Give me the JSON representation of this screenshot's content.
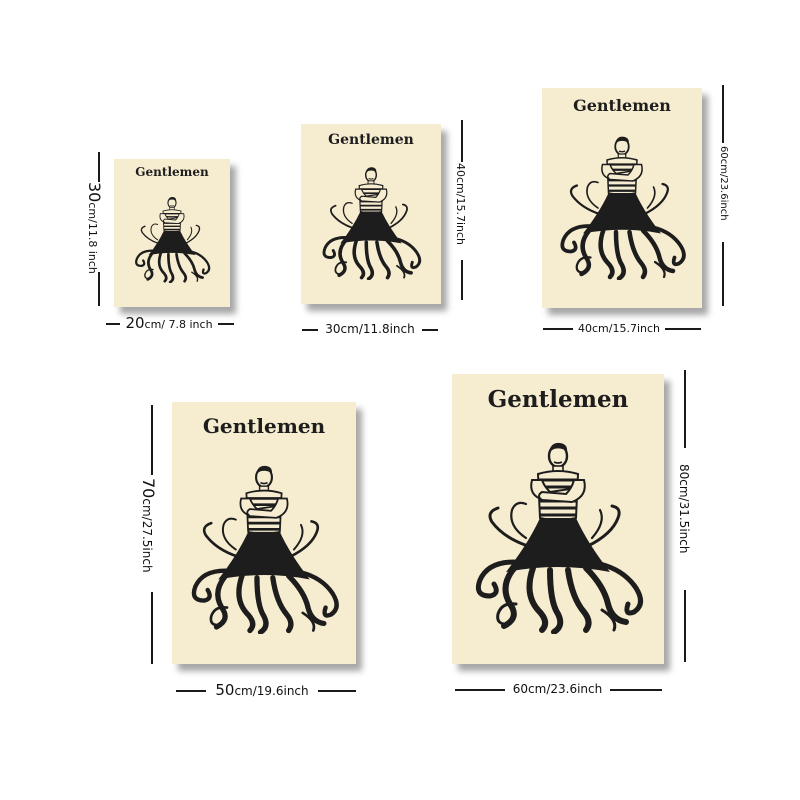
{
  "poster_title": "Gentlemen",
  "sizes": [
    {
      "height_main": "30",
      "height_sub": "cm/11.8 inch",
      "width_main": "20",
      "width_sub": "cm/ 7.8 inch"
    },
    {
      "height_main": "40cm/15.7inch",
      "height_sub": "",
      "width_main": "30cm/11.8inch",
      "width_sub": ""
    },
    {
      "height_main": "60cm/23.6inch",
      "height_sub": "",
      "width_main": "40cm/15.7inch",
      "width_sub": ""
    },
    {
      "height_main": "70",
      "height_sub": "cm/27.5inch",
      "width_main": "50",
      "width_sub": "cm/19.6inch"
    },
    {
      "height_main": "80cm/31.5inch",
      "height_sub": "",
      "width_main": "60cm/23.6inch",
      "width_sub": ""
    }
  ],
  "colors": {
    "paper": "#f6ecd0",
    "ink": "#1d1d1d",
    "background": "#ffffff"
  },
  "illustration": "octopus-gentleman-illustration"
}
